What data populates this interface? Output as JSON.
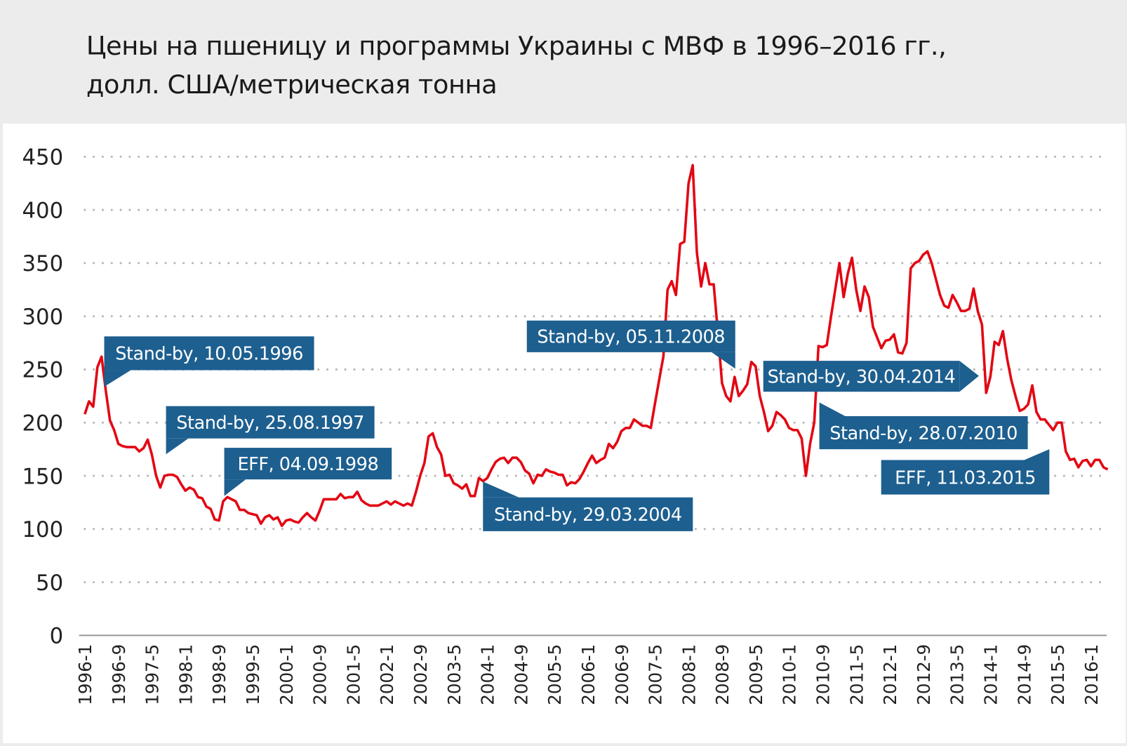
{
  "title_line1": "Цены на пшеницу и программы Украины с МВФ в 1996–2016 гг.,",
  "title_line2": "долл. США/метрическая тонна",
  "colors": {
    "line": "#e30613",
    "annotation": "#1d5f8f",
    "grid": "#b5b5b5"
  },
  "chart_data": {
    "type": "line",
    "title": "Цены на пшеницу и программы Украины с МВФ в 1996–2016 гг., долл. США/метрическая тонна",
    "x_start": "1996-1",
    "x_frequency": "monthly",
    "x_tick_labels": [
      "1996-1",
      "1996-9",
      "1997-5",
      "1998-1",
      "1998-9",
      "1999-5",
      "2000-1",
      "2000-9",
      "2001-5",
      "2002-1",
      "2002-9",
      "2003-5",
      "2004-1",
      "2004-9",
      "2005-5",
      "2006-1",
      "2006-9",
      "2007-5",
      "2008-1",
      "2008-9",
      "2009-5",
      "2010-1",
      "2010-9",
      "2011-5",
      "2012-1",
      "2012-9",
      "2013-5",
      "2014-1",
      "2014-9",
      "2015-5",
      "2016-1"
    ],
    "y_ticks": [
      0,
      50,
      100,
      150,
      200,
      250,
      300,
      350,
      400,
      450
    ],
    "ylim": [
      0,
      450
    ],
    "grid": "horizontal dotted",
    "values": [
      208,
      220,
      215,
      252,
      262,
      230,
      202,
      193,
      180,
      178,
      177,
      177,
      177,
      173,
      176,
      184,
      170,
      150,
      139,
      150,
      151,
      151,
      149,
      142,
      136,
      139,
      137,
      130,
      129,
      121,
      119,
      109,
      108,
      126,
      130,
      128,
      126,
      118,
      118,
      115,
      114,
      113,
      105,
      111,
      113,
      109,
      111,
      103,
      108,
      109,
      107,
      106,
      111,
      115,
      111,
      108,
      117,
      128,
      128,
      128,
      128,
      133,
      129,
      130,
      130,
      135,
      127,
      124,
      122,
      122,
      122,
      124,
      126,
      123,
      126,
      124,
      122,
      124,
      122,
      135,
      150,
      162,
      187,
      190,
      177,
      170,
      150,
      151,
      143,
      141,
      138,
      142,
      131,
      131,
      148,
      145,
      148,
      156,
      163,
      166,
      167,
      162,
      167,
      167,
      163,
      155,
      152,
      143,
      151,
      150,
      156,
      154,
      153,
      151,
      151,
      141,
      144,
      143,
      147,
      154,
      162,
      169,
      162,
      165,
      167,
      180,
      176,
      182,
      192,
      195,
      195,
      203,
      200,
      197,
      197,
      195,
      218,
      240,
      262,
      325,
      333,
      320,
      368,
      370,
      425,
      442,
      360,
      328,
      350,
      330,
      330,
      285,
      237,
      225,
      220,
      243,
      225,
      230,
      236,
      257,
      253,
      225,
      210,
      192,
      197,
      210,
      207,
      203,
      195,
      193,
      193,
      185,
      150,
      180,
      200,
      272,
      271,
      273,
      300,
      325,
      350,
      318,
      340,
      355,
      325,
      305,
      328,
      318,
      290,
      280,
      270,
      277,
      278,
      283,
      266,
      265,
      275,
      345,
      350,
      352,
      358,
      361,
      350,
      335,
      320,
      310,
      308,
      320,
      313,
      305,
      305,
      307,
      326,
      305,
      292,
      228,
      243,
      276,
      273,
      286,
      260,
      240,
      225,
      211,
      213,
      217,
      235,
      210,
      203,
      203,
      198,
      193,
      200,
      200,
      173,
      165,
      166,
      158,
      164,
      165,
      159,
      165,
      165,
      158,
      156
    ],
    "annotations": [
      {
        "label": "Stand-by, 10.05.1996"
      },
      {
        "label": "Stand-by, 25.08.1997"
      },
      {
        "label": "EFF,  04.09.1998"
      },
      {
        "label": "Stand-by, 29.03.2004"
      },
      {
        "label": "Stand-by, 05.11.2008"
      },
      {
        "label": "Stand-by, 30.04.2014"
      },
      {
        "label": "Stand-by, 28.07.2010"
      },
      {
        "label": "EFF,  11.03.2015"
      }
    ]
  }
}
